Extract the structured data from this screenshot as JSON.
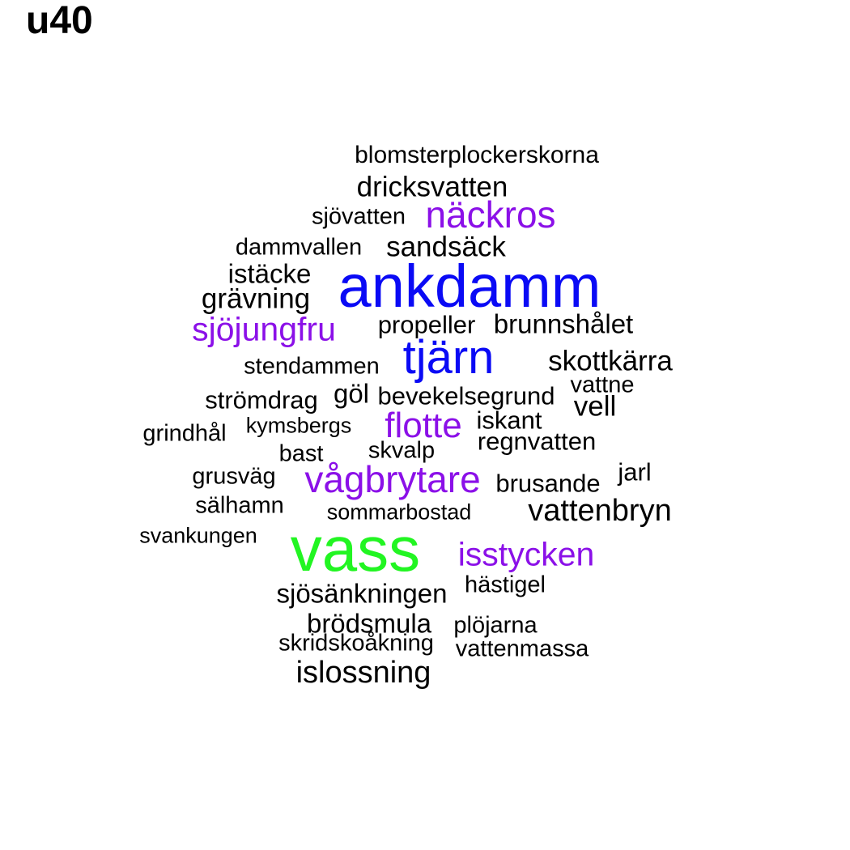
{
  "title": "u40",
  "colors": {
    "black": "#000000",
    "purple": "#8B10E8",
    "blue": "#0A0AF5",
    "green": "#22F522"
  },
  "words": [
    {
      "text": "blomsterplockerskorna",
      "color": "black"
    },
    {
      "text": "dricksvatten",
      "color": "black"
    },
    {
      "text": "sjövatten",
      "color": "black"
    },
    {
      "text": "näckros",
      "color": "purple"
    },
    {
      "text": "dammvallen",
      "color": "black"
    },
    {
      "text": "sandsäck",
      "color": "black"
    },
    {
      "text": "istäcke",
      "color": "black"
    },
    {
      "text": "ankdamm",
      "color": "blue"
    },
    {
      "text": "grävning",
      "color": "black"
    },
    {
      "text": "sjöjungfru",
      "color": "purple"
    },
    {
      "text": "propeller",
      "color": "black"
    },
    {
      "text": "brunnshålet",
      "color": "black"
    },
    {
      "text": "tjärn",
      "color": "blue"
    },
    {
      "text": "stendammen",
      "color": "black"
    },
    {
      "text": "skottkärra",
      "color": "black"
    },
    {
      "text": "vattne",
      "color": "black"
    },
    {
      "text": "strömdrag",
      "color": "black"
    },
    {
      "text": "göl",
      "color": "black"
    },
    {
      "text": "bevekelsegrund",
      "color": "black"
    },
    {
      "text": "vell",
      "color": "black"
    },
    {
      "text": "grindhål",
      "color": "black"
    },
    {
      "text": "kymsbergs",
      "color": "black"
    },
    {
      "text": "flotte",
      "color": "purple"
    },
    {
      "text": "iskant",
      "color": "black"
    },
    {
      "text": "regnvatten",
      "color": "black"
    },
    {
      "text": "bast",
      "color": "black"
    },
    {
      "text": "skvalp",
      "color": "black"
    },
    {
      "text": "grusväg",
      "color": "black"
    },
    {
      "text": "vågbrytare",
      "color": "purple"
    },
    {
      "text": "brusande",
      "color": "black"
    },
    {
      "text": "jarl",
      "color": "black"
    },
    {
      "text": "sälhamn",
      "color": "black"
    },
    {
      "text": "sommarbostad",
      "color": "black"
    },
    {
      "text": "vattenbryn",
      "color": "black"
    },
    {
      "text": "svankungen",
      "color": "black"
    },
    {
      "text": "vass",
      "color": "green"
    },
    {
      "text": "isstycken",
      "color": "purple"
    },
    {
      "text": "hästigel",
      "color": "black"
    },
    {
      "text": "sjösänkningen",
      "color": "black"
    },
    {
      "text": "brödsmula",
      "color": "black"
    },
    {
      "text": "plöjarna",
      "color": "black"
    },
    {
      "text": "skridskoåkning",
      "color": "black"
    },
    {
      "text": "vattenmassa",
      "color": "black"
    },
    {
      "text": "islossning",
      "color": "black"
    }
  ]
}
